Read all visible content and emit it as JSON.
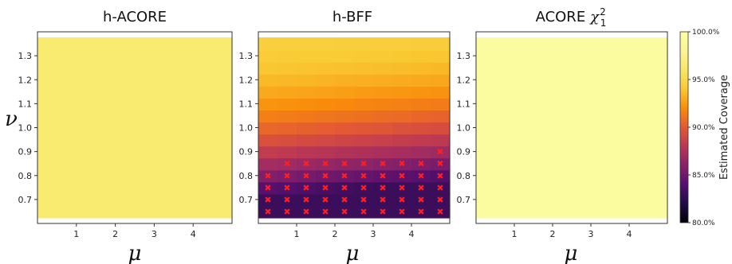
{
  "chart_data": {
    "type": "heatmap",
    "x": [
      0.25,
      0.75,
      1.25,
      1.75,
      2.25,
      2.75,
      3.25,
      3.75,
      4.25,
      4.75
    ],
    "y": [
      0.65,
      0.7,
      0.75,
      0.8,
      0.85,
      0.9,
      0.95,
      1.0,
      1.05,
      1.1,
      1.15,
      1.2,
      1.25,
      1.3,
      1.35
    ],
    "xlabel": "μ",
    "ylabel": "ν",
    "xticks": [
      "1",
      "2",
      "3",
      "4"
    ],
    "yticks": [
      "0.7",
      "0.8",
      "0.9",
      "1.0",
      "1.1",
      "1.2",
      "1.3"
    ],
    "xlim": [
      0,
      5
    ],
    "ylim": [
      0.6,
      1.4
    ],
    "colorbar": {
      "label": "Estimated Coverage",
      "ticks": [
        "80.0%",
        "85.0%",
        "90.0%",
        "95.0%",
        "100.0%"
      ],
      "range": [
        80,
        100
      ],
      "colormap": "inferno"
    },
    "panels": [
      {
        "title": "h-ACORE",
        "base": 96.5,
        "x_slope": 0.0,
        "y_slope": 0.0,
        "low": 96.5,
        "marker_threshold": null
      },
      {
        "title": "h-BFF",
        "base": 94.5,
        "x_slope": 0.9,
        "y_slope": 15.5,
        "low": 83.0,
        "marker_threshold": 87.0
      },
      {
        "title": "ACORE",
        "title_math": "χ²₁",
        "base": 99.3,
        "x_slope": 0.0,
        "y_slope": 0.0,
        "low": 99.3,
        "marker_threshold": null
      }
    ],
    "marker": {
      "symbol": "✖",
      "color": "#ff1f1f",
      "meaning": "under-coverage"
    }
  }
}
